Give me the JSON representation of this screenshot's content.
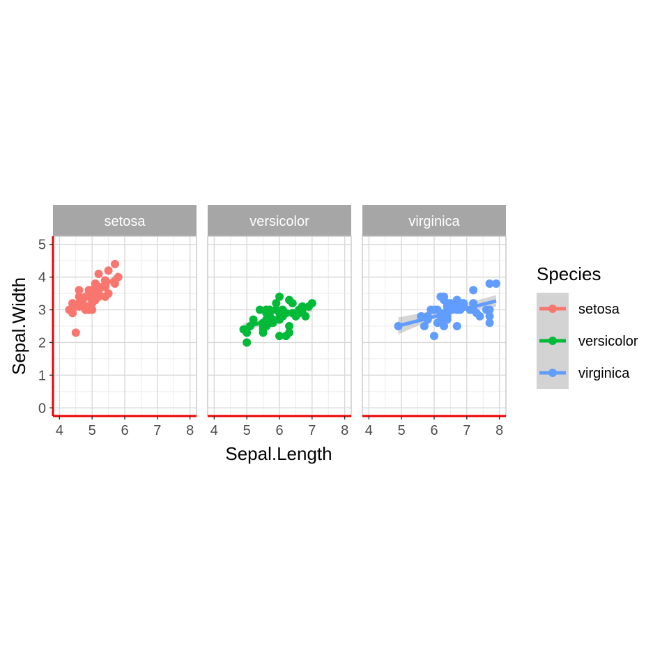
{
  "chart_data": {
    "type": "scatter",
    "facet_by": "Species",
    "xlabel": "Sepal.Length",
    "ylabel": "Sepal.Width",
    "xlim": [
      3.8,
      8.2
    ],
    "ylim": [
      -0.25,
      5.25
    ],
    "x_ticks": [
      4,
      5,
      6,
      7,
      8
    ],
    "y_ticks": [
      0,
      1,
      2,
      3,
      4,
      5
    ],
    "grid": true,
    "smooth": "lm with confidence band",
    "legend": {
      "title": "Species",
      "placement": "right",
      "entries": [
        "setosa",
        "versicolor",
        "virginica"
      ]
    },
    "panels": [
      {
        "label": "setosa",
        "color": "#F8766D",
        "trend": {
          "x": [
            4.3,
            5.8
          ],
          "y": [
            2.99,
            4.03
          ]
        },
        "band": {
          "x": [
            4.3,
            5.05,
            5.8
          ],
          "lower": [
            2.86,
            3.37,
            3.89
          ],
          "upper": [
            3.12,
            3.49,
            4.17
          ]
        },
        "points": [
          [
            5.1,
            3.5
          ],
          [
            4.9,
            3.0
          ],
          [
            4.7,
            3.2
          ],
          [
            4.6,
            3.1
          ],
          [
            5.0,
            3.6
          ],
          [
            5.4,
            3.9
          ],
          [
            4.6,
            3.4
          ],
          [
            5.0,
            3.4
          ],
          [
            4.4,
            2.9
          ],
          [
            4.9,
            3.1
          ],
          [
            5.4,
            3.7
          ],
          [
            4.8,
            3.4
          ],
          [
            4.8,
            3.0
          ],
          [
            4.3,
            3.0
          ],
          [
            5.8,
            4.0
          ],
          [
            5.7,
            4.4
          ],
          [
            5.4,
            3.9
          ],
          [
            5.1,
            3.5
          ],
          [
            5.7,
            3.8
          ],
          [
            5.1,
            3.8
          ],
          [
            5.4,
            3.4
          ],
          [
            5.1,
            3.7
          ],
          [
            4.6,
            3.6
          ],
          [
            5.1,
            3.3
          ],
          [
            4.8,
            3.4
          ],
          [
            5.0,
            3.0
          ],
          [
            5.0,
            3.4
          ],
          [
            5.2,
            3.5
          ],
          [
            5.2,
            3.4
          ],
          [
            4.7,
            3.2
          ],
          [
            4.8,
            3.1
          ],
          [
            5.4,
            3.4
          ],
          [
            5.2,
            4.1
          ],
          [
            5.5,
            4.2
          ],
          [
            4.9,
            3.1
          ],
          [
            5.0,
            3.2
          ],
          [
            5.5,
            3.5
          ],
          [
            4.9,
            3.6
          ],
          [
            4.4,
            3.0
          ],
          [
            5.1,
            3.4
          ],
          [
            5.0,
            3.5
          ],
          [
            4.5,
            2.3
          ],
          [
            4.4,
            3.2
          ],
          [
            5.0,
            3.5
          ],
          [
            5.1,
            3.8
          ],
          [
            4.8,
            3.0
          ],
          [
            5.1,
            3.8
          ],
          [
            4.6,
            3.2
          ],
          [
            5.3,
            3.7
          ],
          [
            5.0,
            3.3
          ]
        ]
      },
      {
        "label": "versicolor",
        "color": "#00BA38",
        "trend": {
          "x": [
            4.9,
            7.0
          ],
          "y": [
            2.44,
            3.11
          ]
        },
        "band": {
          "x": [
            4.9,
            5.95,
            7.0
          ],
          "lower": [
            2.3,
            2.71,
            2.95
          ],
          "upper": [
            2.58,
            2.83,
            3.27
          ]
        },
        "points": [
          [
            7.0,
            3.2
          ],
          [
            6.4,
            3.2
          ],
          [
            6.9,
            3.1
          ],
          [
            5.5,
            2.3
          ],
          [
            6.5,
            2.8
          ],
          [
            5.7,
            2.8
          ],
          [
            6.3,
            3.3
          ],
          [
            4.9,
            2.4
          ],
          [
            6.6,
            2.9
          ],
          [
            5.2,
            2.7
          ],
          [
            5.0,
            2.0
          ],
          [
            5.9,
            3.0
          ],
          [
            6.0,
            2.2
          ],
          [
            6.1,
            2.9
          ],
          [
            5.6,
            2.9
          ],
          [
            6.7,
            3.1
          ],
          [
            5.6,
            3.0
          ],
          [
            5.8,
            2.7
          ],
          [
            6.2,
            2.2
          ],
          [
            5.6,
            2.5
          ],
          [
            5.9,
            3.2
          ],
          [
            6.1,
            2.8
          ],
          [
            6.3,
            2.5
          ],
          [
            6.1,
            2.8
          ],
          [
            6.4,
            2.9
          ],
          [
            6.6,
            3.0
          ],
          [
            6.8,
            2.8
          ],
          [
            6.7,
            3.0
          ],
          [
            6.0,
            2.9
          ],
          [
            5.7,
            2.6
          ],
          [
            5.5,
            2.4
          ],
          [
            5.5,
            2.4
          ],
          [
            5.8,
            2.7
          ],
          [
            6.0,
            2.7
          ],
          [
            5.4,
            3.0
          ],
          [
            6.0,
            3.4
          ],
          [
            6.7,
            3.1
          ],
          [
            6.3,
            2.3
          ],
          [
            5.6,
            3.0
          ],
          [
            5.5,
            2.5
          ],
          [
            5.5,
            2.6
          ],
          [
            6.1,
            3.0
          ],
          [
            5.8,
            2.6
          ],
          [
            5.0,
            2.3
          ],
          [
            5.6,
            2.7
          ],
          [
            5.7,
            3.0
          ],
          [
            5.7,
            2.9
          ],
          [
            6.2,
            2.9
          ],
          [
            5.1,
            2.5
          ],
          [
            5.7,
            2.8
          ]
        ]
      },
      {
        "label": "virginica",
        "color": "#619CFF",
        "trend": {
          "x": [
            4.9,
            7.9
          ],
          "y": [
            2.51,
            3.27
          ]
        },
        "band": {
          "x": [
            4.9,
            6.4,
            7.9
          ],
          "lower": [
            2.25,
            2.9,
            3.09
          ],
          "upper": [
            2.77,
            3.04,
            3.45
          ]
        },
        "points": [
          [
            6.3,
            3.3
          ],
          [
            5.8,
            2.7
          ],
          [
            7.1,
            3.0
          ],
          [
            6.3,
            2.9
          ],
          [
            6.5,
            3.0
          ],
          [
            7.6,
            3.0
          ],
          [
            4.9,
            2.5
          ],
          [
            7.3,
            2.9
          ],
          [
            6.7,
            2.5
          ],
          [
            7.2,
            3.6
          ],
          [
            6.5,
            3.2
          ],
          [
            6.4,
            2.7
          ],
          [
            6.8,
            3.0
          ],
          [
            5.7,
            2.5
          ],
          [
            5.8,
            2.8
          ],
          [
            6.4,
            3.2
          ],
          [
            6.5,
            3.0
          ],
          [
            7.7,
            3.8
          ],
          [
            7.7,
            2.6
          ],
          [
            6.0,
            2.2
          ],
          [
            6.9,
            3.2
          ],
          [
            5.6,
            2.8
          ],
          [
            7.7,
            2.8
          ],
          [
            6.3,
            2.7
          ],
          [
            6.7,
            3.3
          ],
          [
            7.2,
            3.2
          ],
          [
            6.2,
            2.8
          ],
          [
            6.1,
            3.0
          ],
          [
            6.4,
            2.8
          ],
          [
            7.2,
            3.0
          ],
          [
            7.4,
            2.8
          ],
          [
            7.9,
            3.8
          ],
          [
            6.4,
            2.8
          ],
          [
            6.3,
            2.8
          ],
          [
            6.1,
            2.6
          ],
          [
            7.7,
            3.0
          ],
          [
            6.3,
            3.4
          ],
          [
            6.4,
            3.1
          ],
          [
            6.0,
            3.0
          ],
          [
            6.9,
            3.1
          ],
          [
            6.7,
            3.1
          ],
          [
            6.9,
            3.1
          ],
          [
            5.8,
            2.7
          ],
          [
            6.8,
            3.2
          ],
          [
            6.7,
            3.3
          ],
          [
            6.7,
            3.0
          ],
          [
            6.3,
            2.5
          ],
          [
            6.5,
            3.0
          ],
          [
            6.2,
            3.4
          ],
          [
            5.9,
            3.0
          ]
        ]
      }
    ]
  }
}
